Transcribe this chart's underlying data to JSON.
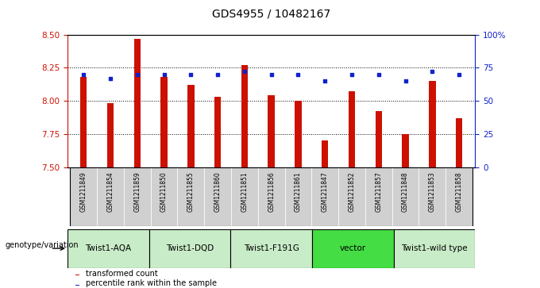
{
  "title": "GDS4955 / 10482167",
  "samples": [
    "GSM1211849",
    "GSM1211854",
    "GSM1211859",
    "GSM1211850",
    "GSM1211855",
    "GSM1211860",
    "GSM1211851",
    "GSM1211856",
    "GSM1211861",
    "GSM1211847",
    "GSM1211852",
    "GSM1211857",
    "GSM1211848",
    "GSM1211853",
    "GSM1211858"
  ],
  "transformed_counts": [
    8.18,
    7.98,
    8.47,
    8.18,
    8.12,
    8.03,
    8.27,
    8.04,
    8.0,
    7.7,
    8.07,
    7.92,
    7.75,
    8.15,
    7.87
  ],
  "percentile_ranks": [
    70,
    67,
    70,
    70,
    70,
    70,
    72,
    70,
    70,
    65,
    70,
    70,
    65,
    72,
    70
  ],
  "genotype_groups": [
    {
      "label": "Twist1-AQA",
      "start": 0,
      "end": 3,
      "color": "#c8ecc8"
    },
    {
      "label": "Twist1-DQD",
      "start": 3,
      "end": 6,
      "color": "#c8ecc8"
    },
    {
      "label": "Twist1-F191G",
      "start": 6,
      "end": 9,
      "color": "#c8ecc8"
    },
    {
      "label": "vector",
      "start": 9,
      "end": 12,
      "color": "#44dd44"
    },
    {
      "label": "Twist1-wild type",
      "start": 12,
      "end": 15,
      "color": "#c8ecc8"
    }
  ],
  "ylim_left": [
    7.5,
    8.5
  ],
  "ylim_right": [
    0,
    100
  ],
  "yticks_left": [
    7.5,
    7.75,
    8.0,
    8.25,
    8.5
  ],
  "yticks_right": [
    0,
    25,
    50,
    75,
    100
  ],
  "bar_color": "#cc1100",
  "dot_color": "#1122cc",
  "bg_color": "#ffffff",
  "axes_color_left": "#cc1100",
  "axes_color_right": "#1122cc",
  "legend_items": [
    "transformed count",
    "percentile rank within the sample"
  ],
  "genotype_label": "genotype/variation",
  "sample_bg_color": "#d0d0d0",
  "bar_width": 0.25
}
